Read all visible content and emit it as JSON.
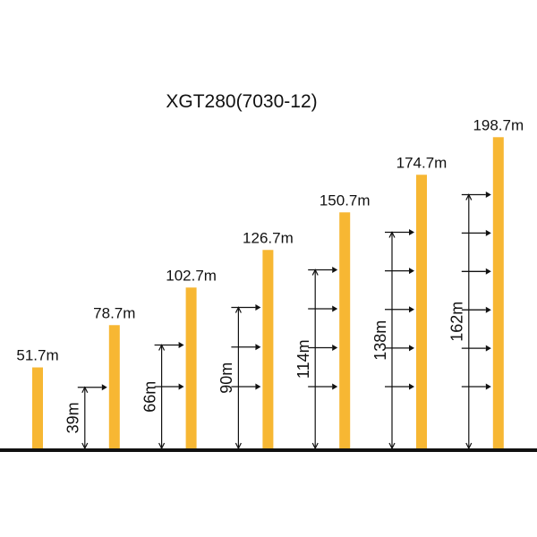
{
  "chart_data": {
    "type": "bar",
    "title": "XGT280(7030-12)",
    "values": [
      51.7,
      78.7,
      102.7,
      126.7,
      150.7,
      174.7,
      198.7
    ],
    "value_labels": [
      "51.7m",
      "78.7m",
      "102.7m",
      "126.7m",
      "150.7m",
      "174.7m",
      "198.7m"
    ],
    "anchor_heights": [
      39,
      66,
      90,
      114,
      138,
      162
    ],
    "anchor_labels": [
      "39m",
      "66m",
      "90m",
      "114m",
      "138m",
      "162m"
    ],
    "color": "#f7b733",
    "ylim": [
      0,
      200
    ]
  }
}
